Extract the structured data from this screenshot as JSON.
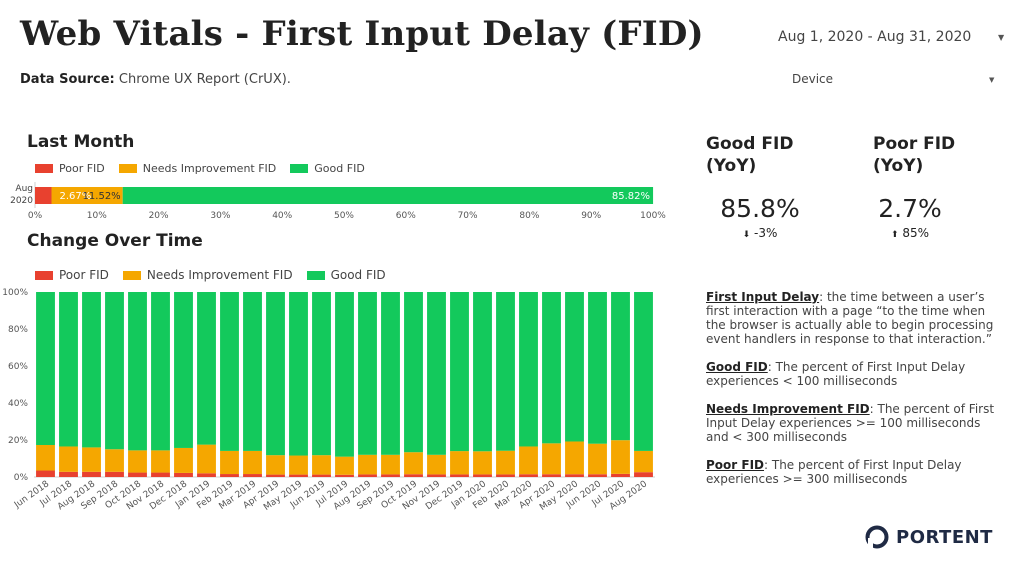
{
  "header": {
    "title": "Web Vitals - First Input Delay (FID)",
    "data_source_label": "Data Source:",
    "data_source_value": "Chrome UX Report (CrUX).",
    "date_range": "Aug 1, 2020 - Aug 31, 2020",
    "device_filter": "Device"
  },
  "colors": {
    "poor": "#e8412f",
    "needs": "#f5a700",
    "good": "#13c95c"
  },
  "last_month": {
    "heading": "Last Month",
    "legend": [
      "Poor FID",
      "Needs Improvement FID",
      "Good FID"
    ]
  },
  "change_over_time": {
    "heading": "Change Over Time",
    "legend": [
      "Poor FID",
      "Needs Improvement FID",
      "Good FID"
    ]
  },
  "kpis": [
    {
      "title_line1": "Good FID",
      "title_line2": "(YoY)",
      "value": "85.8%",
      "arrow": "⬇",
      "delta": "-3%"
    },
    {
      "title_line1": "Poor FID",
      "title_line2": "(YoY)",
      "value": "2.7%",
      "arrow": "⬆",
      "delta": "85%"
    }
  ],
  "definitions": [
    {
      "term": "First Input Delay",
      "text": ": the time between a user’s first interaction with a page “to the time when the browser is actually able to begin processing event handlers in response to that interaction.”"
    },
    {
      "term": "Good FID",
      "text": ": The percent of First Input Delay experiences < 100 milliseconds"
    },
    {
      "term": "Needs Improvement FID",
      "text": ": The percent of First Input Delay experiences >= 100 milliseconds and < 300 milliseconds"
    },
    {
      "term": "Poor FID",
      "text": ": The percent of First Input Delay experiences >= 300 milliseconds"
    }
  ],
  "logo": {
    "text": "PORTENT"
  },
  "chart_data": [
    {
      "type": "bar",
      "orientation": "horizontal",
      "stacked": true,
      "title": "Last Month",
      "categories": [
        "Aug 2020"
      ],
      "category_lines": [
        "Aug",
        "2020"
      ],
      "series": [
        {
          "name": "Poor FID",
          "values": [
            2.67
          ]
        },
        {
          "name": "Needs Improvement FID",
          "values": [
            11.52
          ]
        },
        {
          "name": "Good FID",
          "values": [
            85.82
          ]
        }
      ],
      "data_labels": [
        "2.67%",
        "11.52%",
        "85.82%"
      ],
      "xlim": [
        0,
        100
      ],
      "xticks": [
        "0%",
        "10%",
        "20%",
        "30%",
        "40%",
        "50%",
        "60%",
        "70%",
        "80%",
        "90%",
        "100%"
      ]
    },
    {
      "type": "bar",
      "orientation": "vertical",
      "stacked": true,
      "title": "Change Over Time",
      "categories": [
        "Jun 2018",
        "Jul 2018",
        "Aug 2018",
        "Sep 2018",
        "Oct 2018",
        "Nov 2018",
        "Dec 2018",
        "Jan 2019",
        "Feb 2019",
        "Mar 2019",
        "Apr 2019",
        "May 2019",
        "Jun 2019",
        "Jul 2019",
        "Aug 2019",
        "Sep 2019",
        "Oct 2019",
        "Nov 2019",
        "Dec 2019",
        "Jan 2020",
        "Feb 2020",
        "Mar 2020",
        "Apr 2020",
        "May 2020",
        "Jun 2020",
        "Jul 2020",
        "Aug 2020"
      ],
      "series": [
        {
          "name": "Poor FID",
          "values": [
            3.5,
            2.8,
            2.8,
            2.8,
            2.4,
            2.4,
            2.2,
            2.0,
            1.6,
            1.6,
            1.3,
            1.3,
            1.3,
            1.2,
            1.4,
            1.4,
            1.5,
            1.4,
            1.4,
            1.4,
            1.4,
            1.5,
            1.5,
            1.5,
            1.5,
            1.7,
            2.6
          ]
        },
        {
          "name": "Needs Improvement FID",
          "values": [
            13.8,
            13.7,
            13.2,
            12.2,
            12.0,
            12.0,
            13.5,
            15.5,
            12.5,
            12.5,
            10.5,
            10.3,
            10.5,
            9.8,
            10.6,
            10.6,
            11.9,
            10.6,
            12.6,
            12.5,
            12.8,
            15.0,
            16.7,
            17.7,
            16.5,
            18.2,
            11.5
          ]
        },
        {
          "name": "Good FID",
          "values": [
            82.7,
            83.5,
            84.0,
            85.0,
            85.6,
            85.6,
            84.3,
            82.5,
            85.9,
            85.9,
            88.2,
            88.4,
            88.2,
            89.0,
            88.0,
            88.0,
            86.6,
            88.0,
            86.0,
            86.1,
            85.8,
            83.5,
            81.8,
            80.8,
            82.0,
            80.1,
            85.9
          ]
        }
      ],
      "ylim": [
        0,
        100
      ],
      "yticks": [
        "0%",
        "20%",
        "40%",
        "60%",
        "80%",
        "100%"
      ]
    }
  ]
}
